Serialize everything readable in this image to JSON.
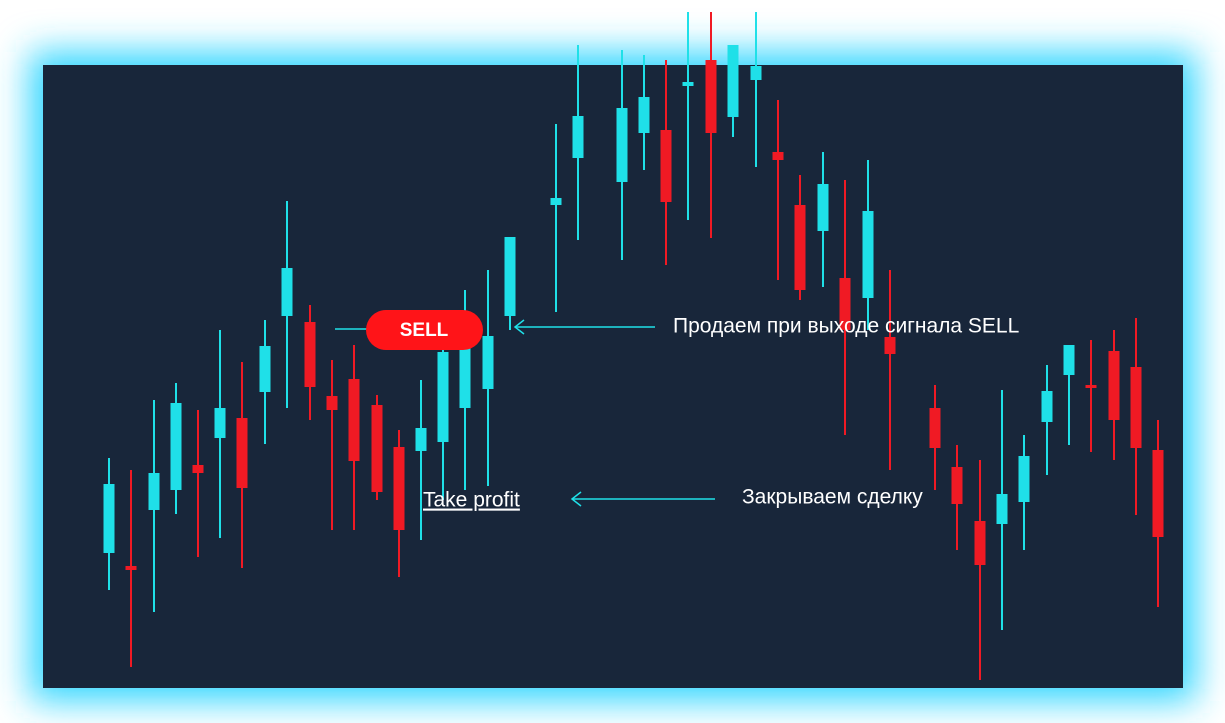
{
  "sell_badge": "SELL",
  "annotations": {
    "sell_signal": "Продаем при выходе сигнала SELL",
    "take_profit": "Take profit",
    "close_trade": "Закрываем сделку"
  }
}
